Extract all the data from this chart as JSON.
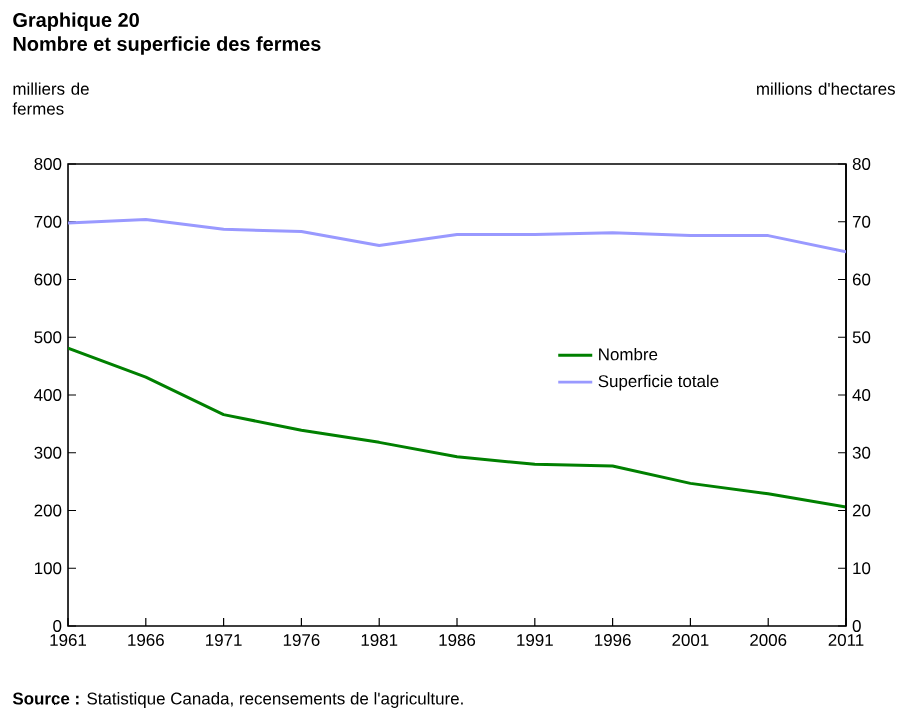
{
  "chart_data": {
    "type": "line",
    "title": "Graphique 20",
    "subtitle": "Nombre et superficie des fermes",
    "ylabel": "milliers de fermes",
    "y2label": "millions d'hectares",
    "x": [
      1961,
      1966,
      1971,
      1976,
      1981,
      1986,
      1991,
      1996,
      2001,
      2006,
      2011
    ],
    "series": [
      {
        "name": "Nombre",
        "color": "#008000",
        "values": [
          481,
          431,
          366,
          339,
          318,
          293,
          280,
          277,
          247,
          229,
          206
        ]
      },
      {
        "name": "Superficie totale",
        "color": "#9999ff",
        "axis": "y2",
        "values": [
          69.8,
          70.4,
          68.7,
          68.3,
          65.9,
          67.8,
          67.8,
          68.1,
          67.6,
          67.6,
          64.8
        ]
      }
    ],
    "xlim": [
      1961,
      2011
    ],
    "xticks": [
      1961,
      1966,
      1971,
      1976,
      1981,
      1986,
      1991,
      1996,
      2001,
      2006,
      2011
    ],
    "ylim": [
      0,
      800
    ],
    "yticks": [
      0,
      100,
      200,
      300,
      400,
      500,
      600,
      700,
      800
    ],
    "y2lim": [
      0,
      80
    ],
    "y2ticks": [
      0,
      10,
      20,
      30,
      40,
      50,
      60,
      70,
      80
    ],
    "legend": "right",
    "marker": "none",
    "line_style": "solid",
    "grid": false,
    "annotations": [
      "**Source :** Statistique Canada, recensements de l'agriculture."
    ]
  }
}
